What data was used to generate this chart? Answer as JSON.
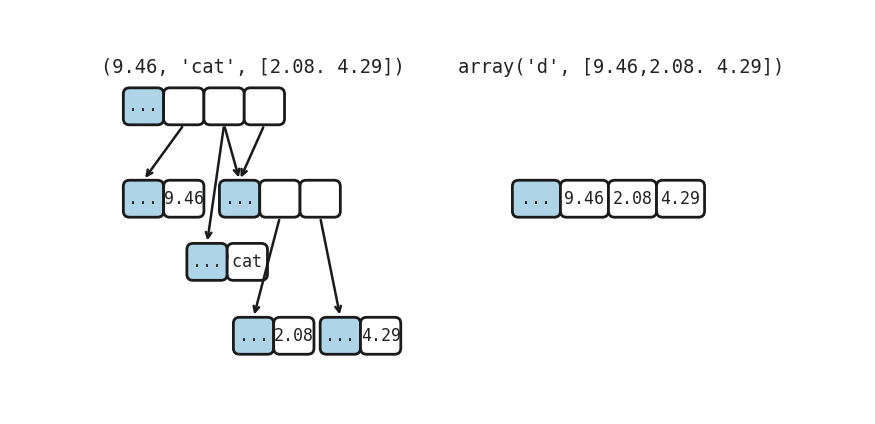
{
  "title_left": "(9.46, 'cat', [2.08. 4.29])",
  "title_right": "array('d', [9.46,2.08. 4.29])",
  "bg_color": "#ffffff",
  "box_blue": "#aed4e8",
  "box_white": "#ffffff",
  "box_edge": "#1a1a1a",
  "text_color": "#222222",
  "title_fontsize": 13.5,
  "content_fontsize": 12,
  "font_family": "monospace"
}
